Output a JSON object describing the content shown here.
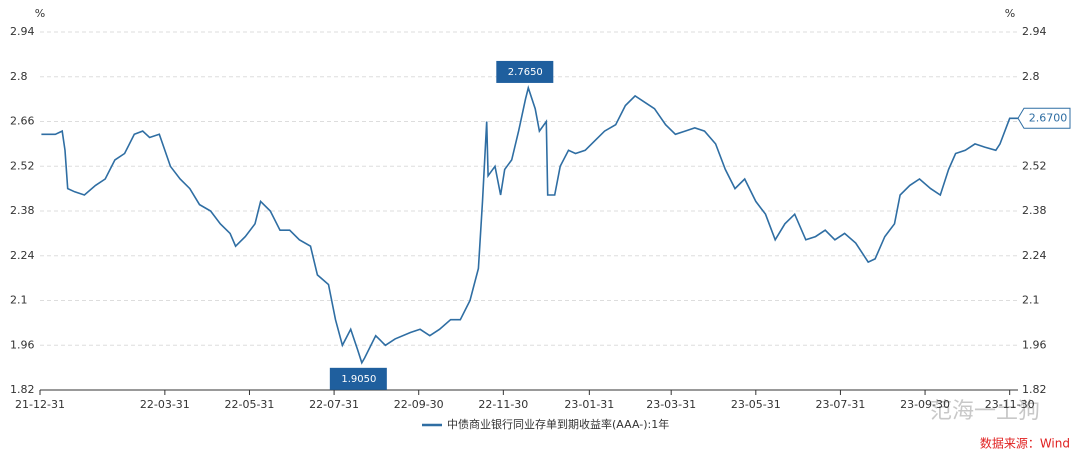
{
  "chart_data": {
    "type": "line",
    "y_unit": "%",
    "x": [
      "22-01-01",
      "22-01-11",
      "22-01-16",
      "22-01-18",
      "22-01-20",
      "22-01-25",
      "22-02-01",
      "22-02-09",
      "22-02-16",
      "22-02-23",
      "22-03-02",
      "22-03-09",
      "22-03-15",
      "22-03-20",
      "22-03-27",
      "22-04-04",
      "22-04-11",
      "22-04-18",
      "22-04-25",
      "22-05-03",
      "22-05-10",
      "22-05-17",
      "22-05-21",
      "22-05-28",
      "22-06-04",
      "22-06-08",
      "22-06-15",
      "22-06-22",
      "22-06-29",
      "22-07-06",
      "22-07-14",
      "22-07-19",
      "22-07-27",
      "22-08-01",
      "22-08-06",
      "22-08-12",
      "22-08-17",
      "22-08-20",
      "22-08-22",
      "22-08-30",
      "22-09-06",
      "22-09-13",
      "22-09-24",
      "22-10-01",
      "22-10-08",
      "22-10-15",
      "22-10-23",
      "22-10-30",
      "22-11-06",
      "22-11-12",
      "22-11-15",
      "22-11-18",
      "22-11-19",
      "22-11-24",
      "22-11-28",
      "22-12-01",
      "22-12-06",
      "22-12-11",
      "22-12-16",
      "22-12-18",
      "22-12-23",
      "22-12-26",
      "22-12-31",
      "23-01-01",
      "23-01-06",
      "23-01-10",
      "23-01-16",
      "23-01-21",
      "23-01-28",
      "23-02-04",
      "23-02-11",
      "23-02-19",
      "23-02-26",
      "23-03-05",
      "23-03-12",
      "23-03-19",
      "23-03-27",
      "23-04-03",
      "23-04-10",
      "23-04-17",
      "23-04-24",
      "23-05-02",
      "23-05-09",
      "23-05-16",
      "23-05-23",
      "23-05-31",
      "23-06-07",
      "23-06-14",
      "23-06-21",
      "23-06-28",
      "23-07-06",
      "23-07-13",
      "23-07-20",
      "23-07-27",
      "23-08-03",
      "23-08-11",
      "23-08-20",
      "23-08-25",
      "23-09-01",
      "23-09-08",
      "23-09-12",
      "23-09-19",
      "23-09-26",
      "23-10-04",
      "23-10-11",
      "23-10-17",
      "23-10-22",
      "23-10-29",
      "23-11-05",
      "23-11-12",
      "23-11-20",
      "23-11-23",
      "23-11-30",
      "23-12-06"
    ],
    "series": [
      {
        "name": "中债商业银行同业存单到期收益率(AAA-):1年",
        "color": "#2f6ea3",
        "values": [
          2.62,
          2.62,
          2.63,
          2.57,
          2.45,
          2.44,
          2.43,
          2.46,
          2.48,
          2.54,
          2.56,
          2.62,
          2.63,
          2.61,
          2.62,
          2.52,
          2.48,
          2.45,
          2.4,
          2.38,
          2.34,
          2.31,
          2.27,
          2.3,
          2.34,
          2.41,
          2.38,
          2.32,
          2.32,
          2.29,
          2.27,
          2.18,
          2.15,
          2.04,
          1.96,
          2.01,
          1.945,
          1.905,
          1.92,
          1.99,
          1.96,
          1.98,
          2.0,
          2.01,
          1.99,
          2.01,
          2.04,
          2.04,
          2.1,
          2.2,
          2.41,
          2.66,
          2.49,
          2.52,
          2.43,
          2.51,
          2.54,
          2.63,
          2.73,
          2.765,
          2.7,
          2.63,
          2.66,
          2.43,
          2.43,
          2.52,
          2.57,
          2.56,
          2.57,
          2.6,
          2.63,
          2.65,
          2.71,
          2.74,
          2.72,
          2.7,
          2.65,
          2.62,
          2.63,
          2.64,
          2.63,
          2.59,
          2.51,
          2.45,
          2.48,
          2.41,
          2.37,
          2.29,
          2.34,
          2.37,
          2.29,
          2.3,
          2.32,
          2.29,
          2.31,
          2.28,
          2.22,
          2.23,
          2.3,
          2.34,
          2.43,
          2.46,
          2.48,
          2.45,
          2.43,
          2.51,
          2.56,
          2.57,
          2.59,
          2.58,
          2.57,
          2.59,
          2.67,
          2.67
        ]
      }
    ],
    "xlim": [
      "21-12-31",
      "23-12-06"
    ],
    "xticks": [
      "21-12-31",
      "22-03-31",
      "22-05-31",
      "22-07-31",
      "22-09-30",
      "22-11-30",
      "23-01-31",
      "23-03-31",
      "23-05-31",
      "23-07-31",
      "23-09-30",
      "23-11-30"
    ],
    "ylim": [
      1.82,
      2.94
    ],
    "yticks": [
      1.82,
      1.96,
      2.1,
      2.24,
      2.38,
      2.52,
      2.66,
      2.8,
      2.94
    ],
    "y2lim": [
      1.82,
      2.94
    ],
    "y2ticks": [
      1.82,
      1.96,
      2.1,
      2.24,
      2.38,
      2.52,
      2.66,
      2.8,
      2.94
    ],
    "grid": true,
    "annotations": [
      {
        "x": "22-08-20",
        "value": 1.905,
        "label": "1.9050",
        "position": "below"
      },
      {
        "x": "22-12-18",
        "value": 2.765,
        "label": "2.7650",
        "position": "above"
      },
      {
        "x": "23-12-06",
        "value": 2.67,
        "label": "2.6700",
        "position": "right-axis"
      }
    ],
    "source": "数据来源：Wind",
    "watermark": "范海一土狗"
  }
}
